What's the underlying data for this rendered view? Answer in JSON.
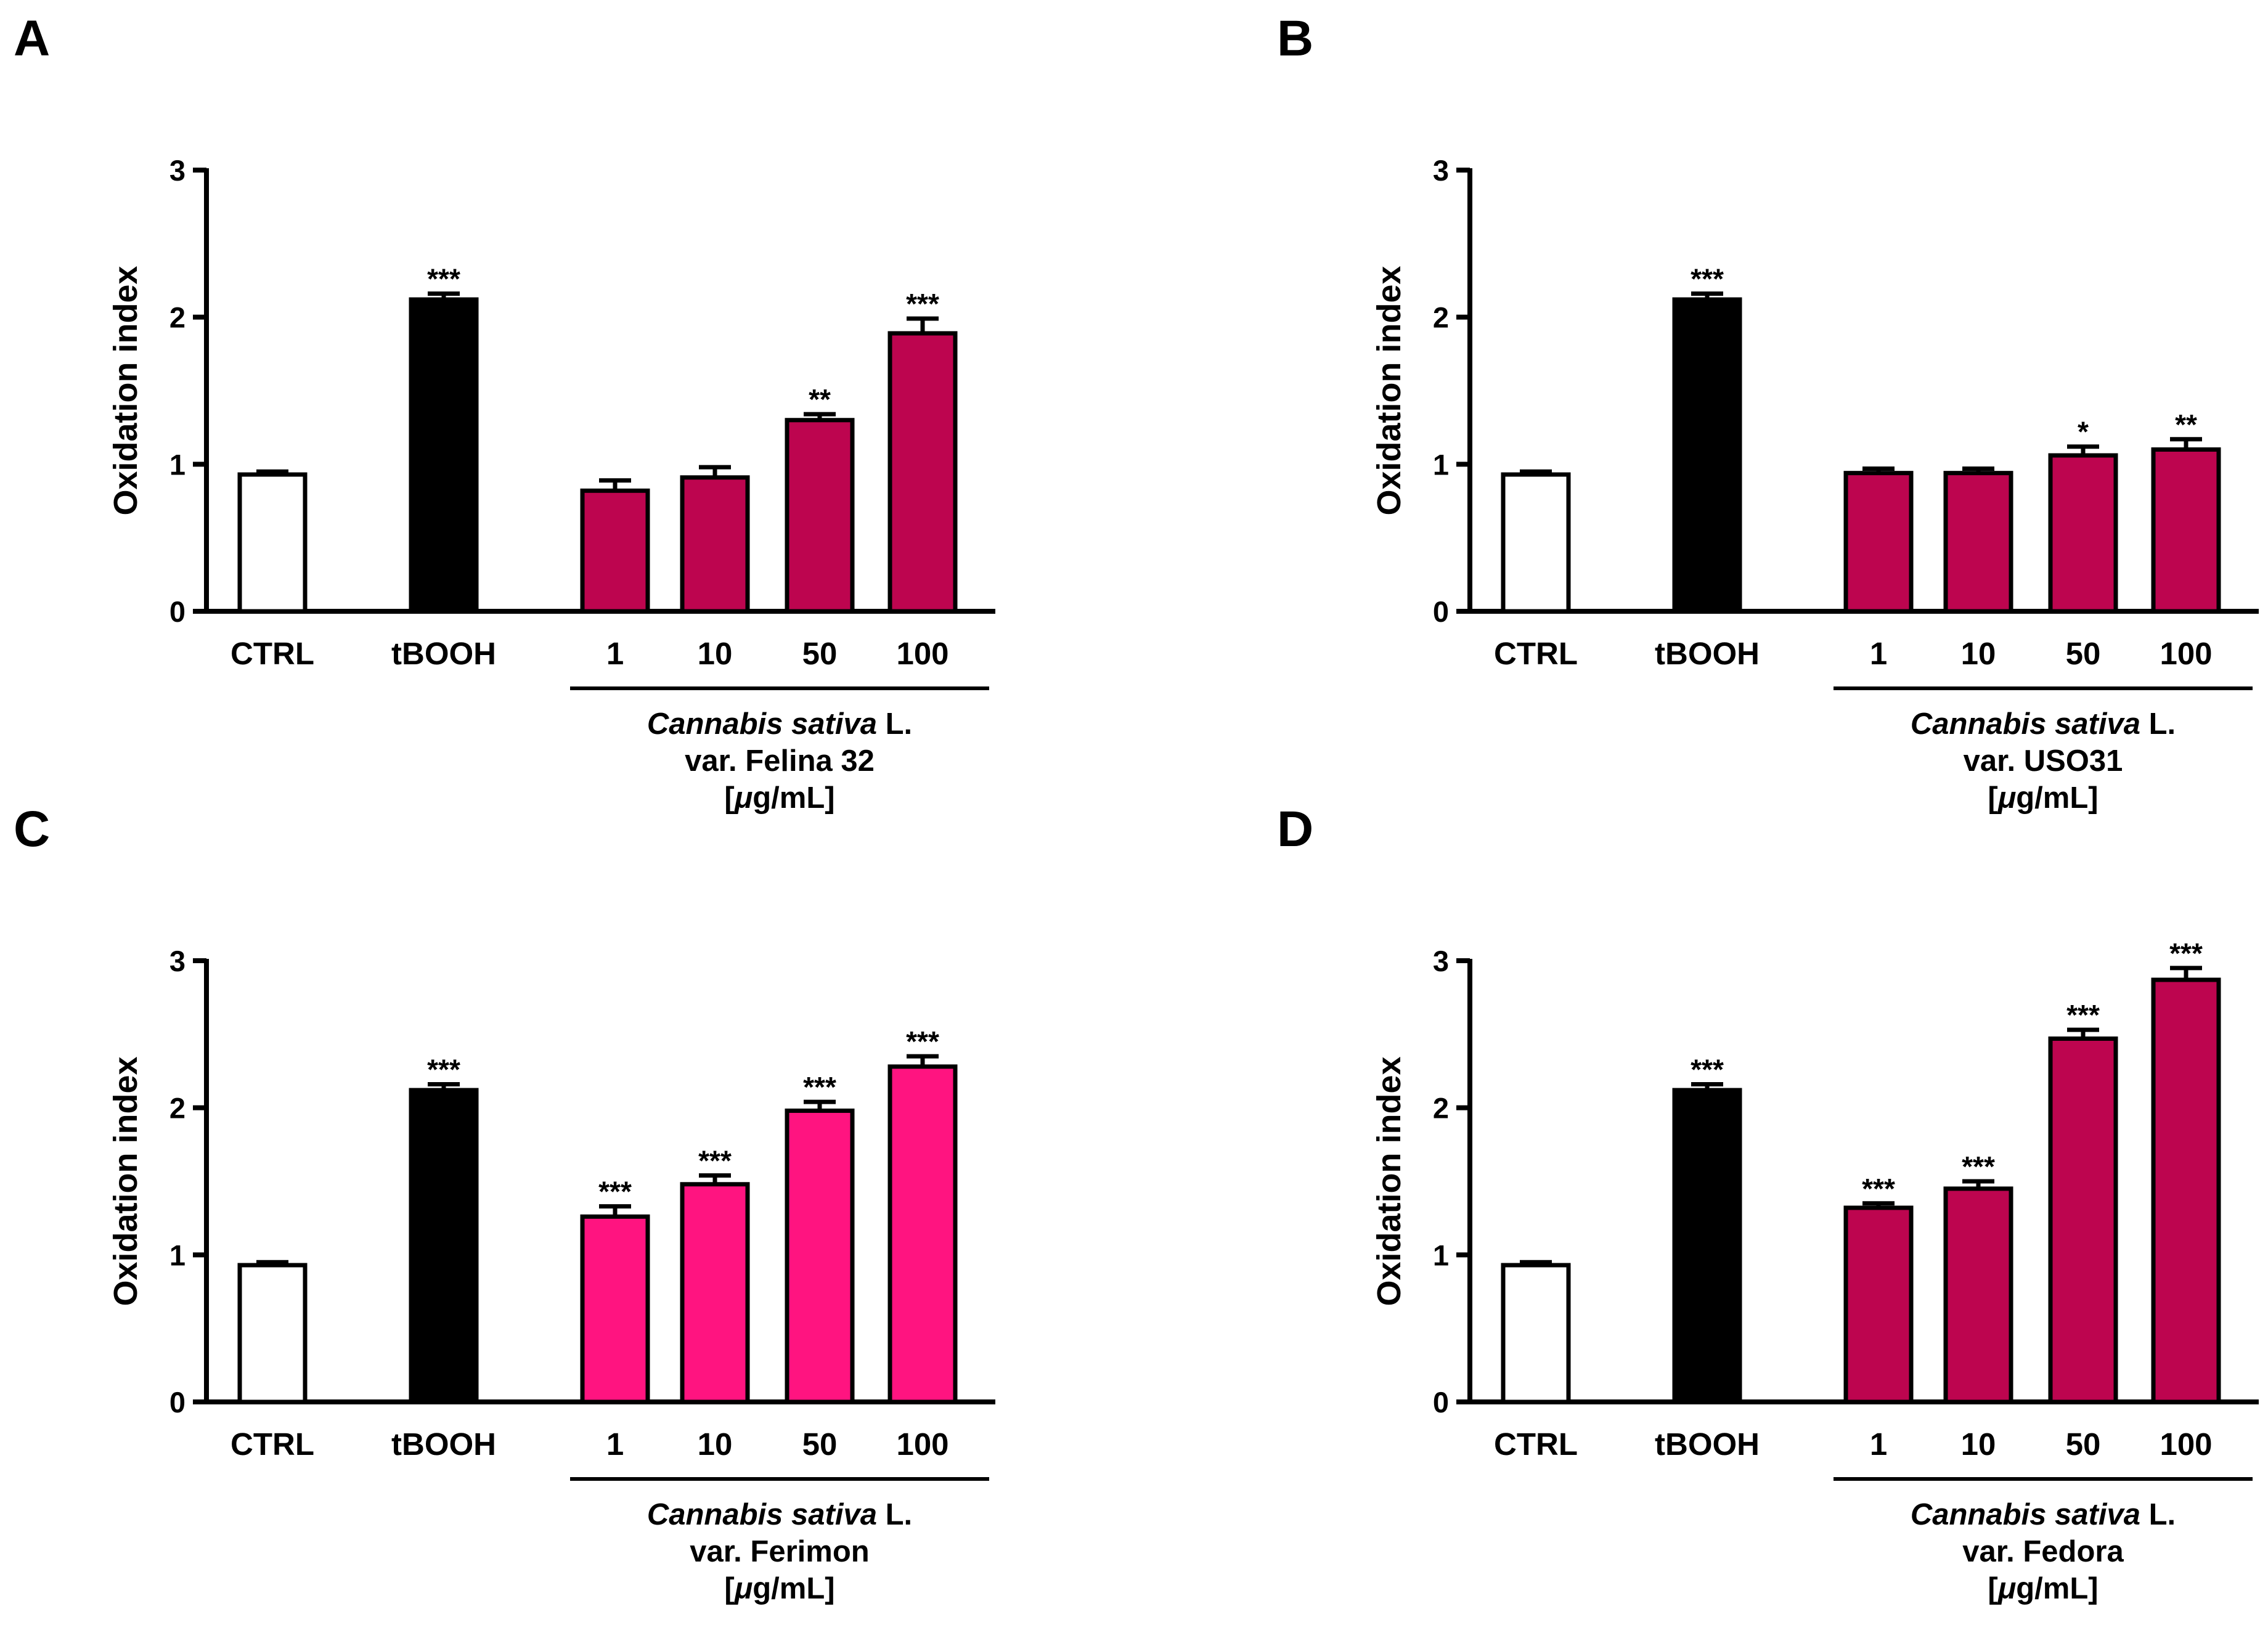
{
  "figure": {
    "chart_data": [
      {
        "type": "bar",
        "panel": "A",
        "title": "",
        "ylabel": "Oxidation index",
        "ylim": [
          0,
          3
        ],
        "yticks": [
          "0",
          "1",
          "2",
          "3"
        ],
        "categories": [
          "CTRL",
          "tBOOH",
          "1",
          "10",
          "50",
          "100"
        ],
        "values": [
          0.93,
          2.12,
          0.82,
          0.91,
          1.3,
          1.89
        ],
        "errors": [
          0.02,
          0.04,
          0.07,
          0.07,
          0.04,
          0.1
        ],
        "significance": [
          "",
          "***",
          "",
          "",
          "**",
          "***"
        ],
        "colors": [
          "#ffffff",
          "#000000",
          "#bd054f",
          "#bd054f",
          "#bd054f",
          "#bd054f"
        ],
        "group": {
          "italic": "Cannabis sativa",
          "suffix": " L.",
          "variety": "var. Felina 32",
          "unit_open": "[",
          "unit_mu": "μ",
          "unit_rest": "g/mL]"
        }
      },
      {
        "type": "bar",
        "panel": "B",
        "title": "",
        "ylabel": "Oxidation index",
        "ylim": [
          0,
          3
        ],
        "yticks": [
          "0",
          "1",
          "2",
          "3"
        ],
        "categories": [
          "CTRL",
          "tBOOH",
          "1",
          "10",
          "50",
          "100"
        ],
        "values": [
          0.93,
          2.12,
          0.94,
          0.94,
          1.06,
          1.1
        ],
        "errors": [
          0.02,
          0.04,
          0.03,
          0.03,
          0.06,
          0.07
        ],
        "significance": [
          "",
          "***",
          "",
          "",
          "*",
          "**"
        ],
        "colors": [
          "#ffffff",
          "#000000",
          "#bd054f",
          "#bd054f",
          "#bd054f",
          "#bd054f"
        ],
        "group": {
          "italic": "Cannabis sativa",
          "suffix": " L.",
          "variety": "var. USO31",
          "unit_open": "[",
          "unit_mu": "μ",
          "unit_rest": "g/mL]"
        }
      },
      {
        "type": "bar",
        "panel": "C",
        "title": "",
        "ylabel": "Oxidation index",
        "ylim": [
          0,
          3
        ],
        "yticks": [
          "0",
          "1",
          "2",
          "3"
        ],
        "categories": [
          "CTRL",
          "tBOOH",
          "1",
          "10",
          "50",
          "100"
        ],
        "values": [
          0.93,
          2.12,
          1.26,
          1.48,
          1.98,
          2.28
        ],
        "errors": [
          0.02,
          0.04,
          0.07,
          0.06,
          0.06,
          0.07
        ],
        "significance": [
          "",
          "***",
          "***",
          "***",
          "***",
          "***"
        ],
        "colors": [
          "#ffffff",
          "#000000",
          "#ff1480",
          "#ff1480",
          "#ff1480",
          "#ff1480"
        ],
        "group": {
          "italic": "Cannabis sativa",
          "suffix": " L.",
          "variety": "var. Ferimon",
          "unit_open": "[",
          "unit_mu": "μ",
          "unit_rest": "g/mL]"
        }
      },
      {
        "type": "bar",
        "panel": "D",
        "title": "",
        "ylabel": "Oxidation index",
        "ylim": [
          0,
          3
        ],
        "yticks": [
          "0",
          "1",
          "2",
          "3"
        ],
        "categories": [
          "CTRL",
          "tBOOH",
          "1",
          "10",
          "50",
          "100"
        ],
        "values": [
          0.93,
          2.12,
          1.32,
          1.45,
          2.47,
          2.87
        ],
        "errors": [
          0.02,
          0.04,
          0.03,
          0.05,
          0.06,
          0.08
        ],
        "significance": [
          "",
          "***",
          "***",
          "***",
          "***",
          "***"
        ],
        "colors": [
          "#ffffff",
          "#000000",
          "#bd054f",
          "#bd054f",
          "#bd054f",
          "#bd054f"
        ],
        "group": {
          "italic": "Cannabis sativa",
          "suffix": " L.",
          "variety": "var. Fedora",
          "unit_open": "[",
          "unit_mu": "μ",
          "unit_rest": "g/mL]"
        }
      }
    ]
  }
}
